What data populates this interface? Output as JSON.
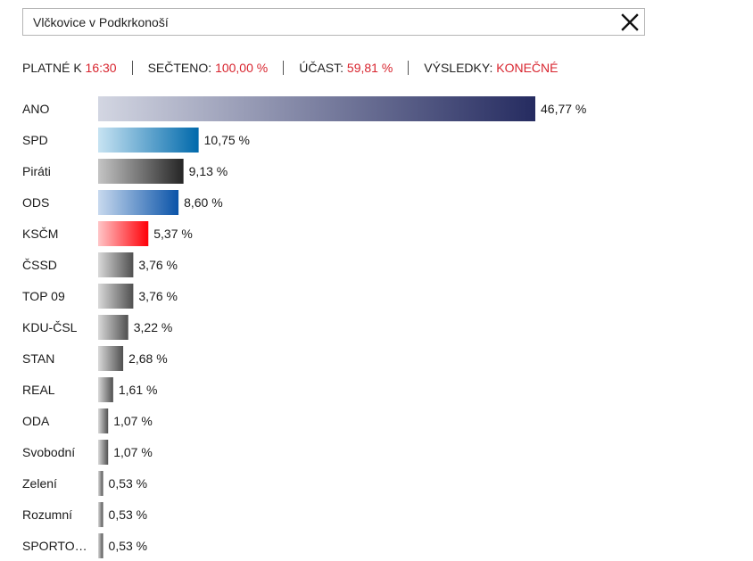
{
  "search": {
    "value": "Vlčkovice v Podkrkonoší",
    "clear_icon": "close-icon"
  },
  "status": {
    "valid_label": "PLATNÉ K",
    "valid_value": "16:30",
    "counted_label": "SEČTENO:",
    "counted_value": "100,00 %",
    "turnout_label": "ÚČAST:",
    "turnout_value": "59,81 %",
    "results_label": "VÝSLEDKY:",
    "results_value": "KONEČNÉ",
    "highlight_color": "#d8242e"
  },
  "chart_data": {
    "type": "bar",
    "orientation": "horizontal",
    "value_suffix": " %",
    "categories": [
      "ANO",
      "SPD",
      "Piráti",
      "ODS",
      "KSČM",
      "ČSSD",
      "TOP 09",
      "KDU-ČSL",
      "STAN",
      "REAL",
      "ODA",
      "Svobodní",
      "Zelení",
      "Rozumní",
      "SPORTO…"
    ],
    "values": [
      46.77,
      10.75,
      9.13,
      8.6,
      5.37,
      3.76,
      3.76,
      3.22,
      2.68,
      1.61,
      1.07,
      1.07,
      0.53,
      0.53,
      0.53
    ],
    "value_labels": [
      "46,77 %",
      "10,75 %",
      "9,13 %",
      "8,60 %",
      "5,37 %",
      "3,76 %",
      "3,76 %",
      "3,22 %",
      "2,68 %",
      "1,61 %",
      "1,07 %",
      "1,07 %",
      "0,53 %",
      "0,53 %",
      "0,53 %"
    ],
    "colors": [
      [
        "#d3d6e2",
        "#252b60"
      ],
      [
        "#c7e3f2",
        "#0069ab"
      ],
      [
        "#c4c4c4",
        "#252525"
      ],
      [
        "#c8d9ee",
        "#0a53a8"
      ],
      [
        "#ffc5c7",
        "#ff0008"
      ],
      [
        "#d9d9d9",
        "#505050"
      ],
      [
        "#d9d9d9",
        "#505050"
      ],
      [
        "#d9d9d9",
        "#505050"
      ],
      [
        "#d9d9d9",
        "#505050"
      ],
      [
        "#d9d9d9",
        "#505050"
      ],
      [
        "#d9d9d9",
        "#505050"
      ],
      [
        "#d9d9d9",
        "#505050"
      ],
      [
        "#d9d9d9",
        "#505050"
      ],
      [
        "#d9d9d9",
        "#505050"
      ],
      [
        "#d9d9d9",
        "#505050"
      ]
    ]
  }
}
